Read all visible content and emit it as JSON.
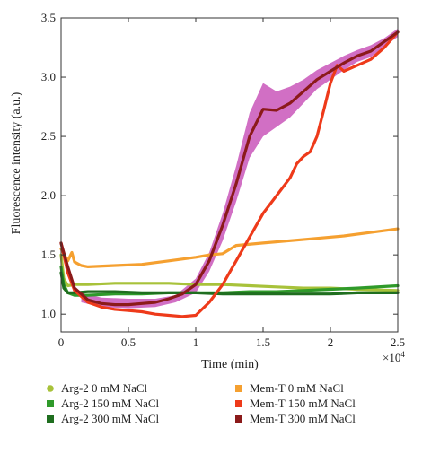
{
  "chart_data": {
    "type": "line",
    "xlabel": "Time (min)",
    "x_multiplier": "×10",
    "x_multiplier_exp": "4",
    "ylabel": "Fluorescence intensity (a.u.)",
    "xlim": [
      0,
      2.5
    ],
    "ylim": [
      0.85,
      3.5
    ],
    "x_ticks": [
      0,
      0.5,
      1,
      1.5,
      2,
      2.5
    ],
    "x_tick_labels": [
      "0",
      "0.5",
      "1",
      "1.5",
      "2",
      "2.5"
    ],
    "y_ticks": [
      1.0,
      1.5,
      2.0,
      2.5,
      3.0,
      3.5
    ],
    "y_tick_labels": [
      "1.0",
      "1.5",
      "2.0",
      "2.5",
      "3.0",
      "3.5"
    ],
    "grid": false,
    "legend_position": "bottom",
    "series": [
      {
        "name": "Arg-2 0 mM NaCl",
        "color": "#a8c23a",
        "x": [
          0,
          0.02,
          0.05,
          0.1,
          0.2,
          0.4,
          0.6,
          0.8,
          1.0,
          1.2,
          1.4,
          1.6,
          1.8,
          2.0,
          2.2,
          2.5
        ],
        "y": [
          1.5,
          1.3,
          1.24,
          1.25,
          1.25,
          1.26,
          1.26,
          1.26,
          1.25,
          1.25,
          1.24,
          1.23,
          1.22,
          1.22,
          1.21,
          1.2
        ]
      },
      {
        "name": "Arg-2 150 mM NaCl",
        "color": "#2f9a2a",
        "x": [
          0,
          0.02,
          0.05,
          0.1,
          0.2,
          0.4,
          0.6,
          0.8,
          1.0,
          1.2,
          1.4,
          1.6,
          1.8,
          2.0,
          2.2,
          2.5
        ],
        "y": [
          1.4,
          1.25,
          1.18,
          1.16,
          1.16,
          1.17,
          1.17,
          1.18,
          1.18,
          1.18,
          1.19,
          1.19,
          1.2,
          1.21,
          1.22,
          1.24
        ]
      },
      {
        "name": "Arg-2 300 mM NaCl",
        "color": "#1f6e1f",
        "x": [
          0,
          0.02,
          0.05,
          0.1,
          0.2,
          0.4,
          0.6,
          0.8,
          1.0,
          1.2,
          1.4,
          1.6,
          1.8,
          2.0,
          2.2,
          2.5
        ],
        "y": [
          1.35,
          1.22,
          1.18,
          1.18,
          1.19,
          1.19,
          1.18,
          1.18,
          1.18,
          1.17,
          1.17,
          1.17,
          1.17,
          1.17,
          1.18,
          1.18
        ]
      },
      {
        "name": "Mem-T 0 mM NaCl",
        "color": "#f5a030",
        "x": [
          0,
          0.05,
          0.08,
          0.1,
          0.15,
          0.2,
          0.4,
          0.6,
          0.8,
          1.0,
          1.1,
          1.2,
          1.3,
          1.5,
          1.7,
          1.9,
          2.1,
          2.3,
          2.5
        ],
        "y": [
          1.55,
          1.45,
          1.52,
          1.44,
          1.41,
          1.4,
          1.41,
          1.42,
          1.45,
          1.48,
          1.5,
          1.51,
          1.58,
          1.6,
          1.62,
          1.64,
          1.66,
          1.69,
          1.72
        ]
      },
      {
        "name": "Mem-T 150 mM NaCl",
        "color": "#ee3a1a",
        "x": [
          0,
          0.05,
          0.1,
          0.2,
          0.3,
          0.4,
          0.5,
          0.6,
          0.7,
          0.8,
          0.9,
          1.0,
          1.1,
          1.2,
          1.3,
          1.4,
          1.5,
          1.6,
          1.7,
          1.75,
          1.8,
          1.85,
          1.9,
          1.95,
          2.0,
          2.05,
          2.1,
          2.2,
          2.3,
          2.4,
          2.5
        ],
        "y": [
          1.6,
          1.35,
          1.2,
          1.1,
          1.06,
          1.04,
          1.03,
          1.02,
          1.0,
          0.99,
          0.98,
          0.99,
          1.1,
          1.25,
          1.45,
          1.65,
          1.85,
          2.0,
          2.15,
          2.27,
          2.33,
          2.37,
          2.5,
          2.72,
          2.95,
          3.1,
          3.05,
          3.1,
          3.15,
          3.25,
          3.38
        ]
      },
      {
        "name": "Mem-T 300 mM NaCl",
        "color": "#8b1a1a",
        "x": [
          0,
          0.05,
          0.1,
          0.2,
          0.3,
          0.4,
          0.5,
          0.6,
          0.7,
          0.8,
          0.9,
          1.0,
          1.1,
          1.2,
          1.3,
          1.4,
          1.5,
          1.6,
          1.7,
          1.8,
          1.9,
          2.0,
          2.1,
          2.2,
          2.3,
          2.4,
          2.5
        ],
        "y": [
          1.6,
          1.4,
          1.22,
          1.12,
          1.09,
          1.08,
          1.08,
          1.09,
          1.1,
          1.13,
          1.17,
          1.25,
          1.45,
          1.75,
          2.1,
          2.5,
          2.73,
          2.72,
          2.78,
          2.88,
          2.98,
          3.05,
          3.12,
          3.18,
          3.22,
          3.3,
          3.38
        ]
      }
    ],
    "error_band": {
      "series": "Mem-T 300 mM NaCl",
      "color": "#c13fb0",
      "x": [
        0.15,
        0.3,
        0.5,
        0.7,
        0.85,
        1.0,
        1.1,
        1.2,
        1.3,
        1.4,
        1.5,
        1.6,
        1.7,
        1.8,
        1.9,
        2.0,
        2.1,
        2.2,
        2.3,
        2.4,
        2.5
      ],
      "upper": [
        1.18,
        1.14,
        1.13,
        1.13,
        1.16,
        1.3,
        1.52,
        1.85,
        2.25,
        2.7,
        2.95,
        2.88,
        2.92,
        2.98,
        3.06,
        3.12,
        3.18,
        3.23,
        3.27,
        3.33,
        3.41
      ],
      "lower": [
        1.1,
        1.06,
        1.05,
        1.06,
        1.1,
        1.18,
        1.36,
        1.62,
        1.95,
        2.32,
        2.5,
        2.58,
        2.66,
        2.78,
        2.9,
        2.98,
        3.06,
        3.13,
        3.17,
        3.26,
        3.34
      ]
    }
  }
}
